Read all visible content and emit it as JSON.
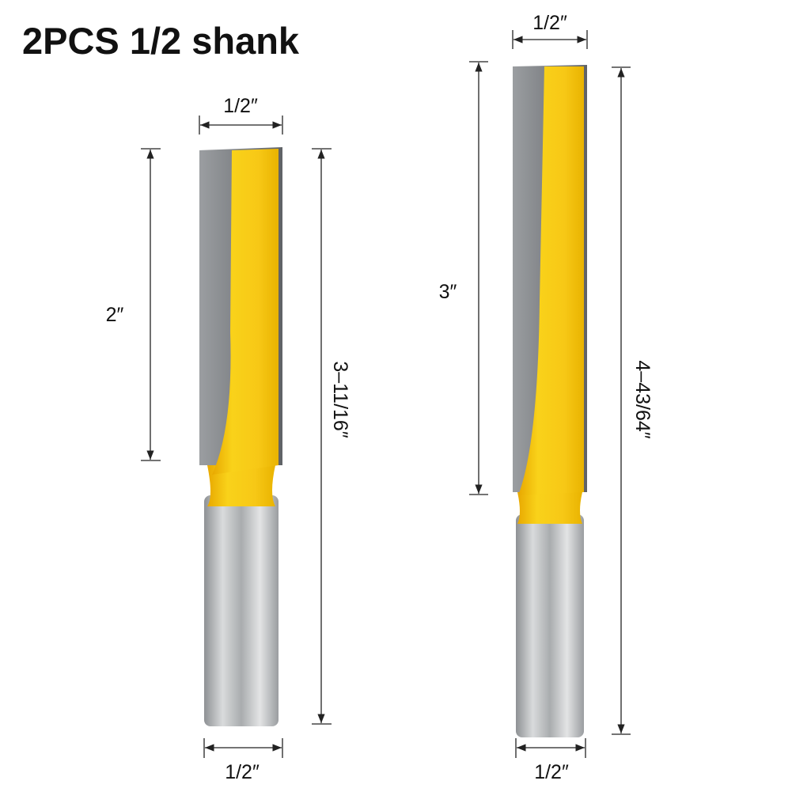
{
  "title": "2PCS 1/2 shank",
  "colors": {
    "flute_yellow": "#f7c816",
    "steel_gray": "#8a8d90",
    "shank_gray": "#bfc2c4"
  },
  "bits": [
    {
      "cutting_diameter": "1/2″",
      "cutting_length": "2″",
      "overall_length": "3–11/16″",
      "shank_diameter": "1/2″"
    },
    {
      "cutting_diameter": "1/2″",
      "cutting_length": "3″",
      "overall_length": "4–43/64″",
      "shank_diameter": "1/2″"
    }
  ]
}
